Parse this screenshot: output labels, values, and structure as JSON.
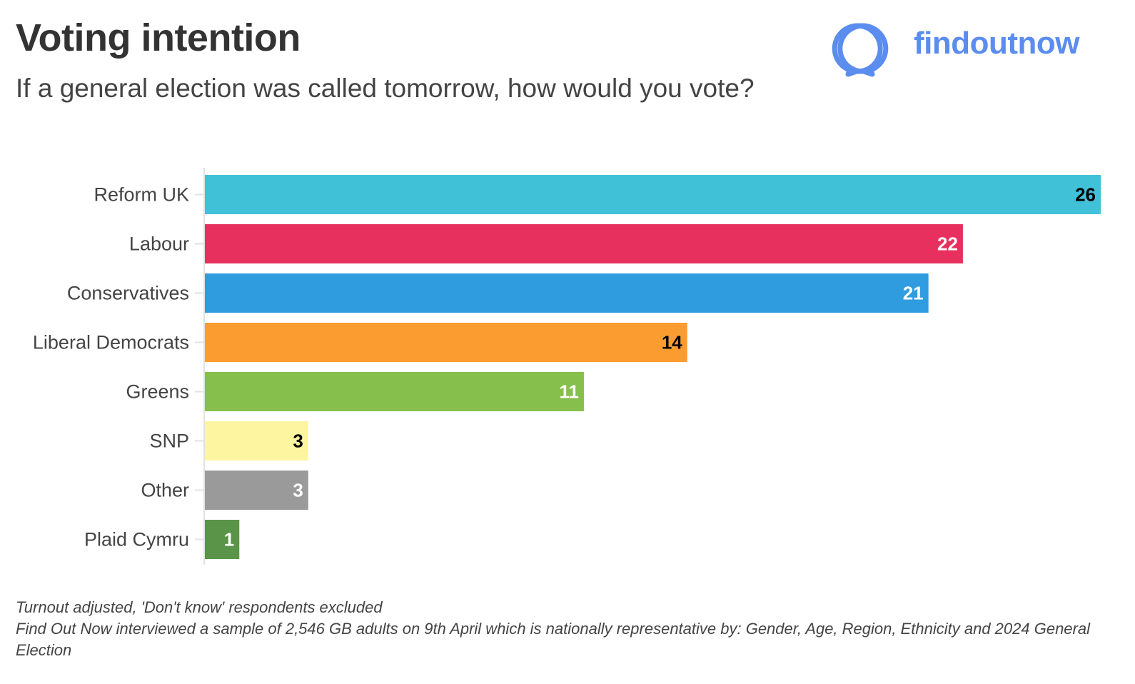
{
  "header": {
    "title": "Voting intention",
    "subtitle": "If a general election was called tomorrow, how would you vote?"
  },
  "brand": {
    "name": "findoutnow",
    "color": "#5b8def"
  },
  "chart_data": {
    "type": "bar",
    "orientation": "horizontal",
    "title": "Voting intention",
    "subtitle": "If a general election was called tomorrow, how would you vote?",
    "categories": [
      "Reform UK",
      "Labour",
      "Conservatives",
      "Liberal Democrats",
      "Greens",
      "SNP",
      "Other",
      "Plaid Cymru"
    ],
    "values": [
      26,
      22,
      21,
      14,
      11,
      3,
      3,
      1
    ],
    "colors": [
      "#40c1d8",
      "#e8305e",
      "#2f9ce0",
      "#fb9c31",
      "#86bf4c",
      "#fdf5a0",
      "#9a9a9a",
      "#5a9448"
    ],
    "label_colors": [
      "#000000",
      "#ffffff",
      "#ffffff",
      "#000000",
      "#ffffff",
      "#000000",
      "#ffffff",
      "#ffffff"
    ],
    "xlim": [
      0,
      26
    ],
    "grid": false,
    "legend": "none",
    "xlabel": "",
    "ylabel": ""
  },
  "footnotes": [
    "Turnout adjusted, 'Don't know' respondents excluded",
    "Find Out Now interviewed a sample of 2,546 GB adults on 9th April which is nationally representative by: Gender, Age, Region, Ethnicity and 2024 General Election"
  ]
}
